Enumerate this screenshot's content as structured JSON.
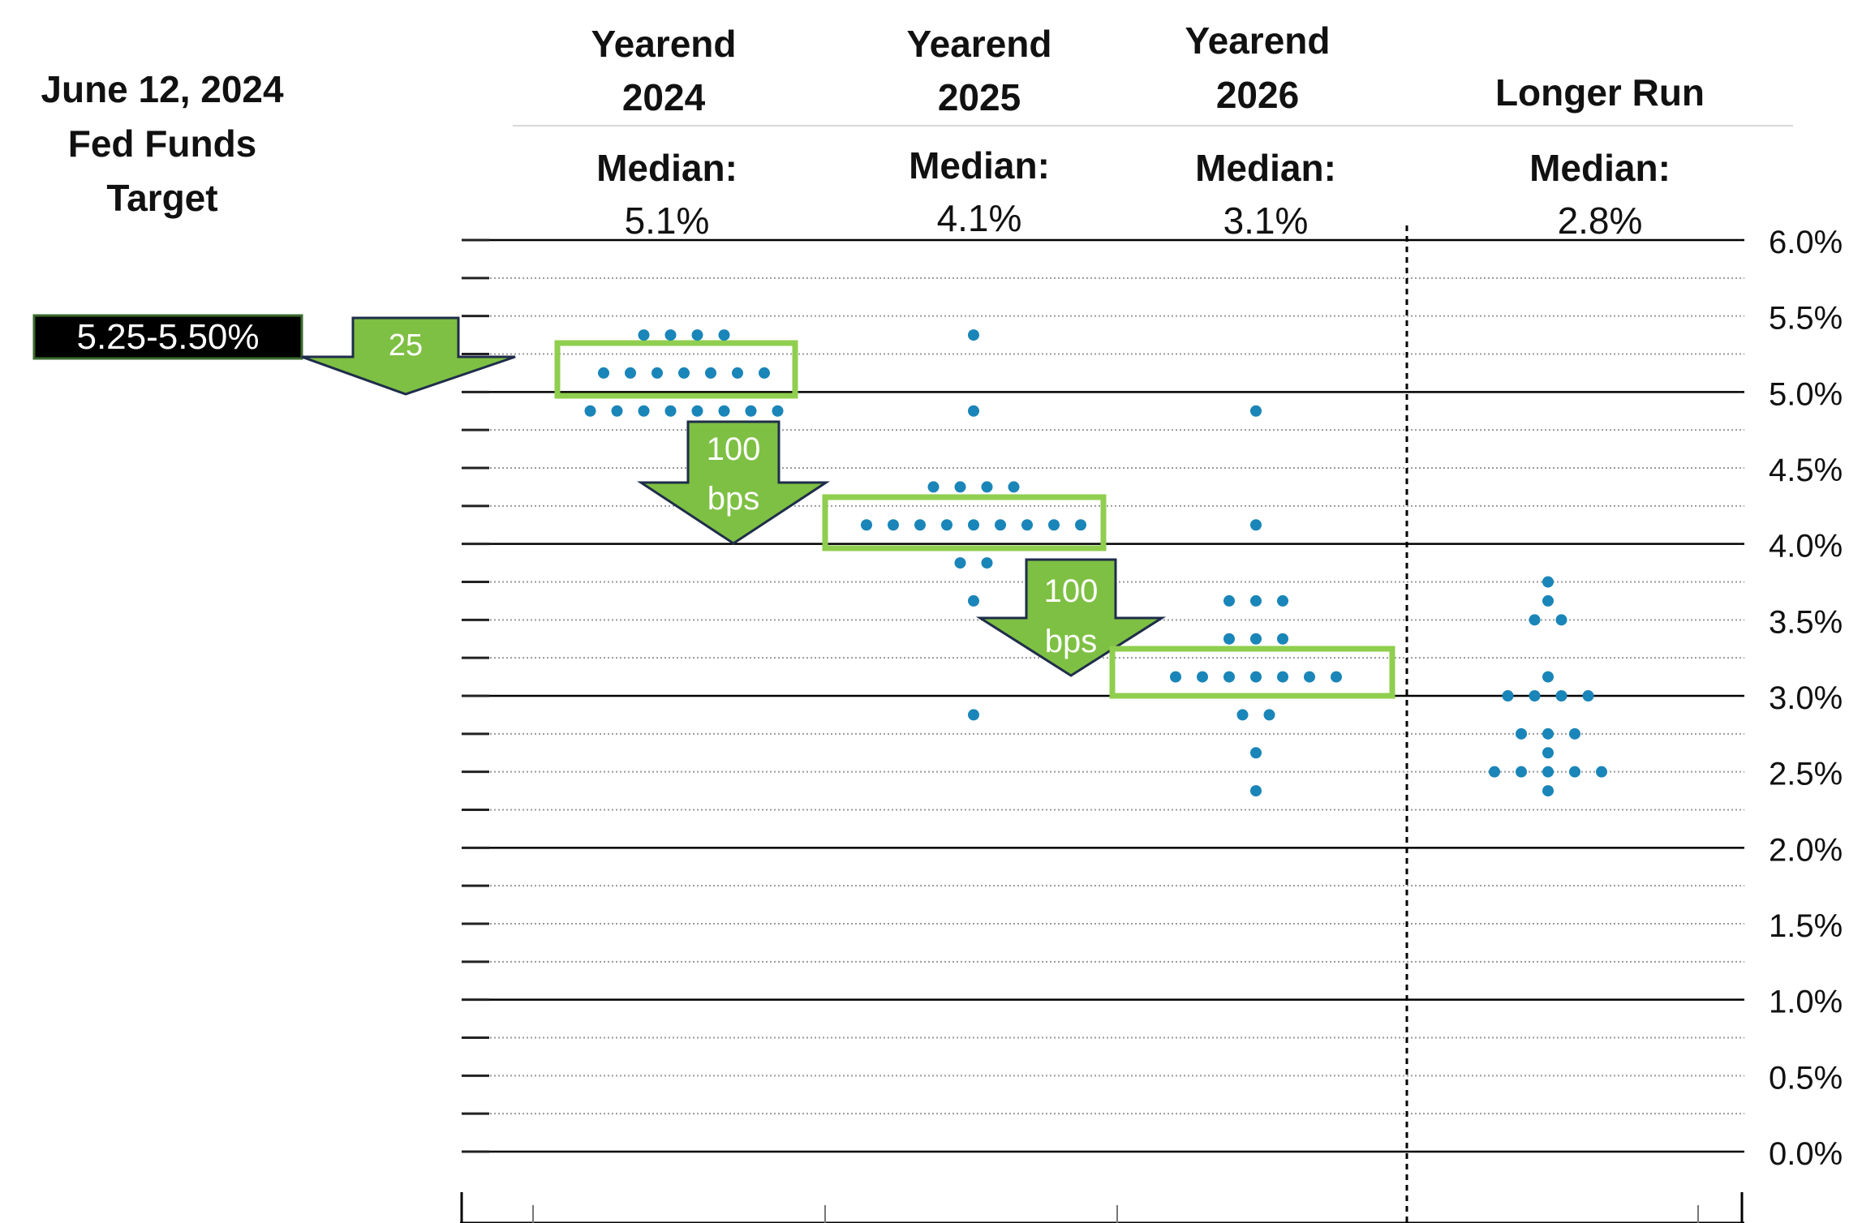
{
  "left_title": {
    "line1": "June 12, 2024",
    "line2": "Fed Funds",
    "line3": "Target"
  },
  "current_rate_badge": "5.25-5.50%",
  "columns": [
    {
      "line1": "Yearend",
      "line2": "2024",
      "median_label": "Median:",
      "median_value": "5.1%"
    },
    {
      "line1": "Yearend",
      "line2": "2025",
      "median_label": "Median:",
      "median_value": "4.1%"
    },
    {
      "line1": "Yearend",
      "line2": "2026",
      "median_label": "Median:",
      "median_value": "3.1%"
    },
    {
      "line1": "",
      "line2": "Longer Run",
      "median_label": "Median:",
      "median_value": "2.8%"
    }
  ],
  "arrows": [
    {
      "line1": "25",
      "line2": ""
    },
    {
      "line1": "100",
      "line2": "bps"
    },
    {
      "line1": "100",
      "line2": "bps"
    }
  ],
  "colors": {
    "dot": "#1a85b8",
    "highlight": "#8fce4e",
    "arrow_fill": "#7ec043",
    "arrow_stroke": "#1f2d4a",
    "badge_bg": "#000000",
    "badge_border": "#3a6b2e"
  },
  "chart_data": {
    "type": "scatter",
    "y_ticks": [
      "6.0%",
      "5.5%",
      "5.0%",
      "4.5%",
      "4.0%",
      "3.5%",
      "3.0%",
      "2.5%",
      "2.0%",
      "1.5%",
      "1.0%",
      "0.5%",
      "0.0%"
    ],
    "ylim": [
      0,
      6
    ],
    "grid": "dotted every 0.25, solid every 1.0",
    "highlighted_values": [
      5.125,
      4.125,
      3.125
    ],
    "series": [
      {
        "category": "2024",
        "points": [
          {
            "y": 5.375,
            "n": 4
          },
          {
            "y": 5.125,
            "n": 7
          },
          {
            "y": 4.875,
            "n": 8
          }
        ]
      },
      {
        "category": "2025",
        "points": [
          {
            "y": 5.375,
            "n": 1
          },
          {
            "y": 4.875,
            "n": 1
          },
          {
            "y": 4.375,
            "n": 4
          },
          {
            "y": 4.125,
            "n": 9
          },
          {
            "y": 3.875,
            "n": 2
          },
          {
            "y": 3.625,
            "n": 1
          },
          {
            "y": 2.875,
            "n": 1
          }
        ]
      },
      {
        "category": "2026",
        "points": [
          {
            "y": 4.875,
            "n": 1
          },
          {
            "y": 4.125,
            "n": 1
          },
          {
            "y": 3.625,
            "n": 3
          },
          {
            "y": 3.375,
            "n": 3
          },
          {
            "y": 3.125,
            "n": 7
          },
          {
            "y": 2.875,
            "n": 2
          },
          {
            "y": 2.625,
            "n": 1
          },
          {
            "y": 2.375,
            "n": 1
          }
        ]
      },
      {
        "category": "Longer run",
        "points": [
          {
            "y": 3.75,
            "n": 1
          },
          {
            "y": 3.625,
            "n": 1
          },
          {
            "y": 3.5,
            "n": 2
          },
          {
            "y": 3.125,
            "n": 1
          },
          {
            "y": 3.0,
            "n": 4
          },
          {
            "y": 2.75,
            "n": 3
          },
          {
            "y": 2.625,
            "n": 1
          },
          {
            "y": 2.5,
            "n": 5
          },
          {
            "y": 2.375,
            "n": 1
          }
        ]
      }
    ]
  }
}
